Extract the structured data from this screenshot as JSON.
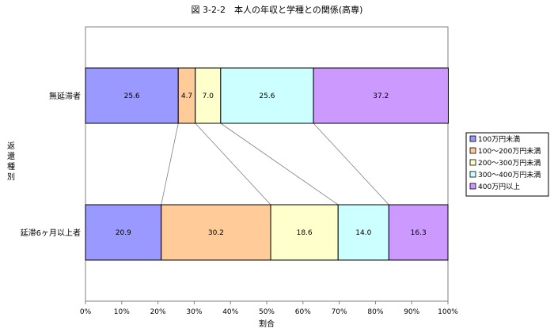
{
  "chart_data": {
    "type": "bar",
    "orientation": "horizontal",
    "stacked": true,
    "percent": true,
    "title": "図 3-2-2　本人の年収と学種との関係(高専)",
    "xlabel": "割合",
    "ylabel": "返還種別",
    "xlim": [
      0,
      100
    ],
    "xticks": [
      "0%",
      "10%",
      "20%",
      "30%",
      "40%",
      "50%",
      "60%",
      "70%",
      "80%",
      "90%",
      "100%"
    ],
    "categories": [
      "無延滞者",
      "延滞6ヶ月以上者"
    ],
    "series": [
      {
        "name": "100万円未満",
        "color": "#9999ff",
        "values": [
          25.6,
          20.9
        ]
      },
      {
        "name": "100～200万円未満",
        "color": "#ffcc99",
        "values": [
          4.7,
          30.2
        ]
      },
      {
        "name": "200～300万円未満",
        "color": "#ffffcc",
        "values": [
          7.0,
          18.6
        ]
      },
      {
        "name": "300～400万円未満",
        "color": "#ccffff",
        "values": [
          25.6,
          14.0
        ]
      },
      {
        "name": "400万円以上",
        "color": "#cc99ff",
        "values": [
          37.2,
          16.3
        ]
      }
    ],
    "series_lines": true,
    "grid": false,
    "legend": "right"
  }
}
